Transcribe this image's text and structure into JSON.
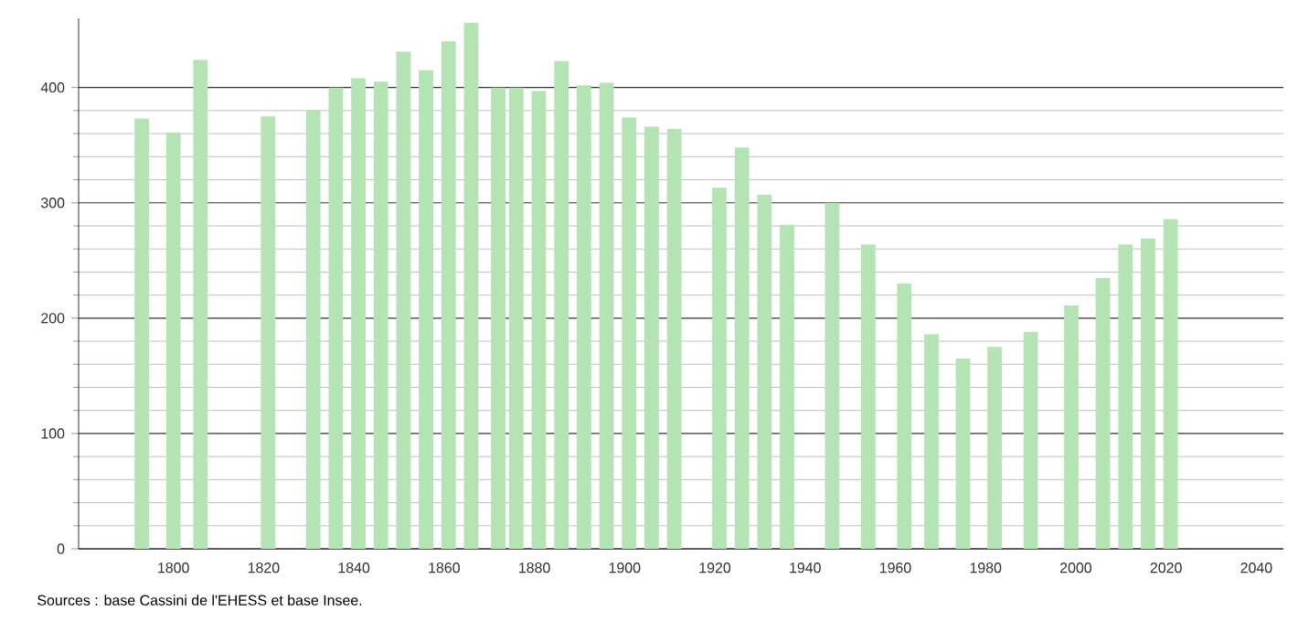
{
  "chart_data": {
    "type": "bar",
    "x": [
      1793,
      1800,
      1806,
      1821,
      1831,
      1836,
      1841,
      1846,
      1851,
      1856,
      1861,
      1866,
      1872,
      1876,
      1881,
      1886,
      1891,
      1896,
      1901,
      1906,
      1911,
      1921,
      1926,
      1931,
      1936,
      1946,
      1954,
      1962,
      1968,
      1975,
      1982,
      1990,
      1999,
      2006,
      2011,
      2016,
      2021
    ],
    "values": [
      373,
      361,
      424,
      375,
      380,
      400,
      408,
      405,
      431,
      415,
      440,
      456,
      400,
      400,
      397,
      423,
      402,
      404,
      374,
      366,
      364,
      313,
      348,
      307,
      281,
      300,
      264,
      230,
      186,
      165,
      175,
      188,
      211,
      235,
      264,
      269,
      286
    ],
    "color": "#b4e4b4",
    "xlim": [
      1779,
      2046
    ],
    "xticks": [
      1800,
      1820,
      1840,
      1860,
      1880,
      1900,
      1920,
      1940,
      1960,
      1980,
      2000,
      2020,
      2040
    ],
    "ylim": [
      0,
      460
    ],
    "yticks": [
      0,
      100,
      200,
      300,
      400
    ],
    "grid": "y",
    "annotations": [
      "Sources : base Cassini de l'EHESS et base Insee."
    ]
  }
}
